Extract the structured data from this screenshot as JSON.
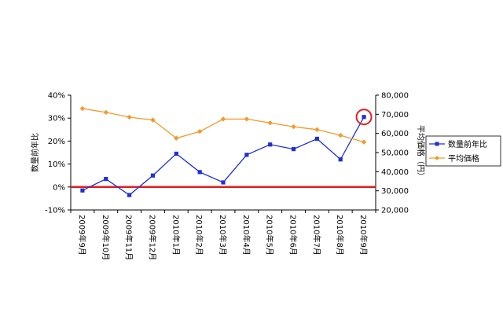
{
  "chart_data": {
    "type": "line",
    "categories": [
      "2009年9月",
      "2009年10月",
      "2009年11月",
      "2009年12月",
      "2010年1月",
      "2010年2月",
      "2010年3月",
      "2010年4月",
      "2010年5月",
      "2010年6月",
      "2010年7月",
      "2010年8月",
      "2010年9月"
    ],
    "series": [
      {
        "name": "数量前年比",
        "axis": "left",
        "color": "#1f2fd6",
        "marker": "square",
        "values": [
          -1.5,
          3.5,
          -3.5,
          5.0,
          14.5,
          6.5,
          2.0,
          14.0,
          18.5,
          16.5,
          21.0,
          12.0,
          30.5
        ]
      },
      {
        "name": "平均価格",
        "axis": "right",
        "color": "#f39b2a",
        "marker": "diamond",
        "values": [
          73000,
          71000,
          68500,
          67000,
          57500,
          61000,
          67500,
          67500,
          65500,
          63500,
          62000,
          59000,
          55500
        ]
      }
    ],
    "y_left": {
      "label": "数量前年比",
      "ylim": [
        -10,
        40
      ],
      "ticks": [
        "-10%",
        "0%",
        "10%",
        "20%",
        "30%",
        "40%"
      ]
    },
    "y_right": {
      "label": "平均価格（円）",
      "ylim": [
        20000,
        80000
      ],
      "ticks": [
        "20,000",
        "30,000",
        "40,000",
        "50,000",
        "60,000",
        "70,000",
        "80,000"
      ]
    },
    "reference_line": {
      "value": 0,
      "color": "#e02020"
    },
    "highlight": {
      "category_index": 12,
      "color": "#e02020"
    },
    "grid": false,
    "legend": "right"
  }
}
